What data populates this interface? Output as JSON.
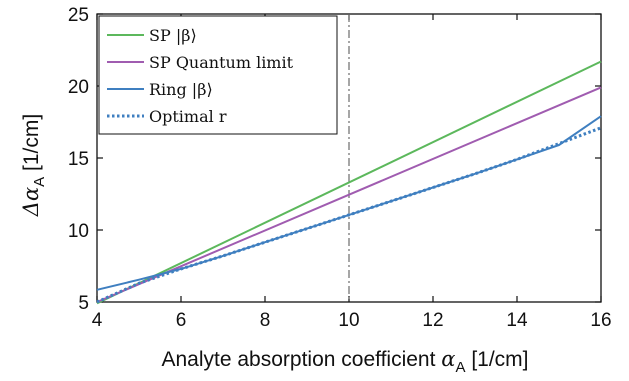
{
  "chart_data": {
    "type": "line",
    "xlabel": "Analyte absorption coefficient αA [1/cm]",
    "xlabel_parts": {
      "text": "Analyte absorption coefficient ",
      "symbol": "α",
      "subscript": "A",
      "unit": " [1/cm]"
    },
    "ylabel": "ΔαA [1/cm]",
    "ylabel_parts": {
      "symbol": "Δα",
      "subscript": "A",
      "unit": " [1/cm]"
    },
    "xlim": [
      4,
      16
    ],
    "ylim": [
      5,
      25
    ],
    "xticks": [
      4,
      6,
      8,
      10,
      12,
      14,
      16
    ],
    "yticks": [
      5,
      10,
      15,
      20,
      25
    ],
    "grid": false,
    "legend_position": "top-left",
    "vline": {
      "x": 10,
      "style": "dash-dot",
      "color": "#6b6b6b"
    },
    "series": [
      {
        "name": "SP |β⟩",
        "color": "#5cb85c",
        "style": "solid",
        "x": [
          4,
          16
        ],
        "y": [
          4.9,
          21.7
        ]
      },
      {
        "name": "SP Quantum limit",
        "color": "#a05cb0",
        "style": "solid",
        "x": [
          4,
          16
        ],
        "y": [
          5.0,
          19.9
        ]
      },
      {
        "name": "Ring |β⟩",
        "color": "#3f7fc0",
        "style": "solid",
        "x": [
          4,
          5,
          6,
          7,
          8,
          9,
          10,
          11,
          12,
          13,
          14,
          15,
          16
        ],
        "y": [
          5.85,
          6.55,
          7.3,
          8.2,
          9.15,
          10.1,
          11.05,
          12.0,
          12.95,
          13.9,
          14.9,
          15.9,
          17.9
        ]
      },
      {
        "name": "Optimal r",
        "color": "#3f7fc0",
        "style": "dotted",
        "x": [
          4,
          5,
          6,
          7,
          8,
          9,
          10,
          11,
          12,
          13,
          14,
          15,
          16
        ],
        "y": [
          5.0,
          6.3,
          7.3,
          8.2,
          9.15,
          10.1,
          11.05,
          12.0,
          12.95,
          13.9,
          14.9,
          16.0,
          17.1
        ]
      }
    ]
  }
}
